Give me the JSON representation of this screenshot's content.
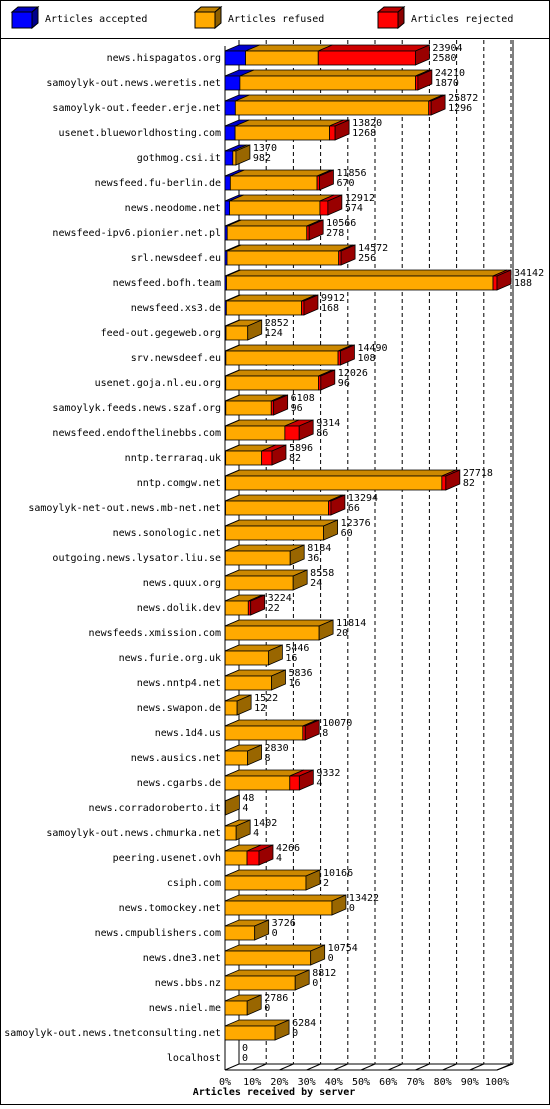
{
  "chart_data": {
    "type": "bar3d",
    "orientation": "horizontal",
    "stacked": true,
    "xlabel": "Articles received by server",
    "categories": [
      "news.hispagatos.org",
      "samoylyk-out.news.weretis.net",
      "samoylyk-out.feeder.erje.net",
      "usenet.blueworldhosting.com",
      "gothmog.csi.it",
      "newsfeed.fu-berlin.de",
      "news.neodome.net",
      "newsfeed-ipv6.pionier.net.pl",
      "srl.newsdeef.eu",
      "newsfeed.bofh.team",
      "newsfeed.xs3.de",
      "feed-out.gegeweb.org",
      "srv.newsdeef.eu",
      "usenet.goja.nl.eu.org",
      "samoylyk.feeds.news.szaf.org",
      "newsfeed.endofthelinebbs.com",
      "nntp.terraraq.uk",
      "nntp.comgw.net",
      "samoylyk-net-out.news.mb-net.net",
      "news.sonologic.net",
      "outgoing.news.lysator.liu.se",
      "news.quux.org",
      "news.dolik.dev",
      "newsfeeds.xmission.com",
      "news.furie.org.uk",
      "news.nntp4.net",
      "news.swapon.de",
      "news.1d4.us",
      "news.ausics.net",
      "news.cgarbs.de",
      "news.corradoroberto.it",
      "samoylyk-out.news.chmurka.net",
      "peering.usenet.ovh",
      "csiph.com",
      "news.tomockey.net",
      "news.cmpublishers.com",
      "news.dne3.net",
      "news.bbs.nz",
      "news.niel.me",
      "samoylyk-out.news.tnetconsulting.net",
      "localhost"
    ],
    "totals": [
      23904,
      24210,
      25872,
      13820,
      1370,
      11856,
      12912,
      10566,
      14572,
      34142,
      9912,
      2852,
      14490,
      12026,
      6108,
      9314,
      5896,
      27718,
      13294,
      12376,
      8184,
      8558,
      3224,
      11814,
      5446,
      5836,
      1522,
      10070,
      2830,
      9332,
      48,
      1402,
      4266,
      10166,
      13422,
      3726,
      10754,
      8812,
      2786,
      6284,
      0
    ],
    "series": [
      {
        "name": "Articles accepted",
        "color": "#0000ff",
        "values": [
          2580,
          1870,
          1296,
          1268,
          982,
          670,
          574,
          278,
          256,
          188,
          168,
          124,
          108,
          96,
          96,
          86,
          82,
          82,
          66,
          60,
          36,
          24,
          22,
          20,
          16,
          16,
          12,
          8,
          8,
          4,
          4,
          4,
          4,
          2,
          0,
          0,
          0,
          0,
          0,
          0,
          0
        ]
      },
      {
        "name": "Articles refused",
        "color": "#ffaa00",
        "values": [
          9124,
          22040,
          24276,
          11852,
          388,
          10886,
          11338,
          9988,
          14016,
          33454,
          9444,
          2728,
          14082,
          11630,
          5712,
          7428,
          4514,
          27136,
          12928,
          12316,
          8148,
          8534,
          2902,
          11794,
          5430,
          5820,
          1510,
          9762,
          2822,
          8128,
          44,
          1398,
          2762,
          10164,
          13422,
          3726,
          10754,
          8812,
          2786,
          6284,
          0
        ]
      },
      {
        "name": "Articles rejected",
        "color": "#ff0000",
        "values": [
          12200,
          300,
          300,
          700,
          0,
          300,
          1000,
          300,
          300,
          500,
          300,
          0,
          300,
          300,
          300,
          1800,
          1300,
          500,
          300,
          0,
          0,
          0,
          300,
          0,
          0,
          0,
          0,
          300,
          0,
          1200,
          0,
          0,
          1500,
          0,
          0,
          0,
          0,
          0,
          0,
          0,
          0
        ]
      }
    ],
    "xlim": [
      0,
      100
    ],
    "xticks": [
      {
        "value": 0,
        "label": "0%"
      },
      {
        "value": 10,
        "label": "10%"
      },
      {
        "value": 20,
        "label": "20%"
      },
      {
        "value": 30,
        "label": "30%"
      },
      {
        "value": 40,
        "label": "40%"
      },
      {
        "value": 50,
        "label": "50%"
      },
      {
        "value": 60,
        "label": "60%"
      },
      {
        "value": 70,
        "label": "70%"
      },
      {
        "value": 80,
        "label": "80%"
      },
      {
        "value": 90,
        "label": "90%"
      },
      {
        "value": 100,
        "label": "100%"
      }
    ],
    "grid": true
  }
}
